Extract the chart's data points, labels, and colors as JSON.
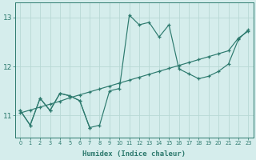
{
  "x_all": [
    0,
    1,
    2,
    3,
    4,
    5,
    6,
    7,
    8,
    9,
    10,
    11,
    12,
    13,
    14,
    15,
    16,
    17,
    18,
    19,
    20,
    21,
    22,
    23
  ],
  "volatile_line": [
    11.1,
    10.8,
    11.35,
    11.1,
    11.45,
    11.4,
    11.3,
    10.75,
    10.8,
    11.5,
    11.55,
    13.05,
    12.85,
    12.9,
    12.6,
    12.85,
    11.95,
    11.85,
    11.75,
    11.8,
    11.9,
    12.05,
    12.55,
    12.75
  ],
  "trend_line_x": [
    0,
    1,
    2,
    3,
    4,
    5,
    6,
    7,
    8,
    9,
    10,
    11,
    12,
    13,
    14,
    15,
    16,
    17,
    18,
    19,
    20,
    21,
    22,
    23
  ],
  "trend_line_y": [
    11.05,
    11.11,
    11.17,
    11.23,
    11.29,
    11.36,
    11.42,
    11.48,
    11.54,
    11.6,
    11.66,
    11.72,
    11.78,
    11.84,
    11.9,
    11.96,
    12.02,
    12.08,
    12.14,
    12.2,
    12.26,
    12.32,
    12.58,
    12.72
  ],
  "short_line_x": [
    0,
    1,
    2,
    3,
    4,
    5,
    6,
    7,
    8,
    9,
    10
  ],
  "short_line_y": [
    11.1,
    10.8,
    11.35,
    11.1,
    11.45,
    11.4,
    11.3,
    10.75,
    10.8,
    11.5,
    11.55
  ],
  "bg_color": "#d5edec",
  "line_color": "#2d7a6e",
  "grid_color": "#b8d8d5",
  "xlabel": "Humidex (Indice chaleur)",
  "yticks": [
    11,
    12,
    13
  ],
  "xtick_labels": [
    "0",
    "1",
    "2",
    "3",
    "4",
    "5",
    "6",
    "7",
    "8",
    "9",
    "10",
    "11",
    "12",
    "13",
    "14",
    "15",
    "16",
    "17",
    "18",
    "19",
    "20",
    "21",
    "22",
    "23"
  ],
  "ylim": [
    10.55,
    13.3
  ],
  "xlim": [
    -0.5,
    23.5
  ]
}
